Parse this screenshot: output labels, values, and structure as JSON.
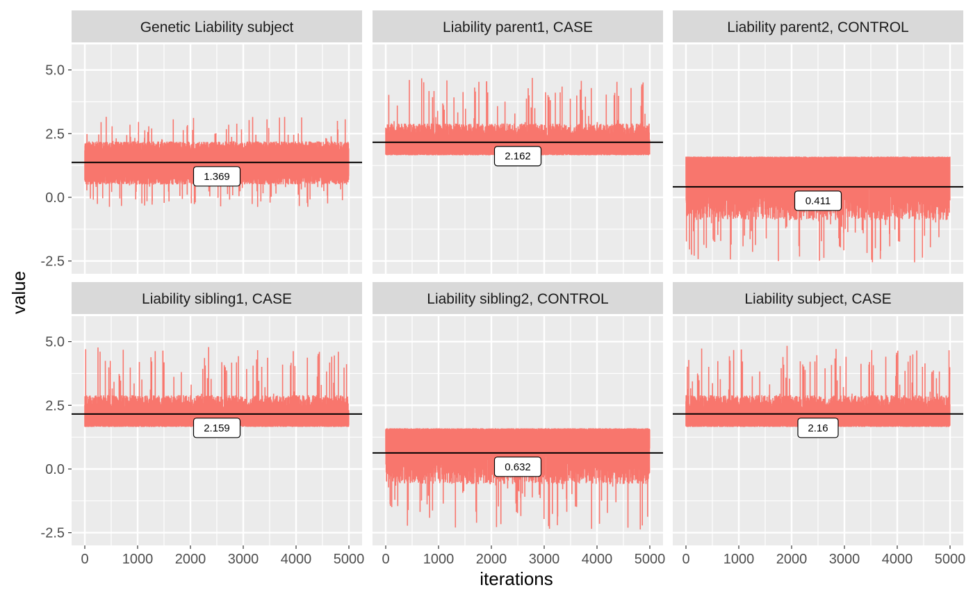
{
  "chart_data": {
    "type": "line",
    "layout": "facet-grid",
    "xlabel": "iterations",
    "ylabel": "value",
    "xlim": [
      -250,
      5250
    ],
    "ylim": [
      -3.0,
      6.0
    ],
    "xticks": [
      0,
      1000,
      2000,
      3000,
      4000,
      5000
    ],
    "yticks": [
      -2.5,
      0.0,
      2.5,
      5.0
    ],
    "ytick_labels": [
      "-2.5",
      "0.0",
      "2.5",
      "5.0"
    ],
    "grid": true,
    "n_iterations": 5000,
    "colors": {
      "series": "#F8766D",
      "mean_line": "#000000",
      "panel_bg": "#EBEBEB",
      "strip_bg": "#D9D9D9",
      "grid": "#FFFFFF"
    },
    "panels": [
      {
        "title": "Genetic Liability subject",
        "mean": 1.369,
        "mean_label": "1.369",
        "range_lo": 0.5,
        "range_hi": 2.2,
        "spike_min": -0.4,
        "spike_max": 3.2,
        "trunc_lower": false,
        "trunc_upper": false
      },
      {
        "title": "Liability parent1, CASE",
        "mean": 2.162,
        "mean_label": "2.162",
        "range_lo": 1.65,
        "range_hi": 2.9,
        "spike_min": 1.65,
        "spike_max": 4.7,
        "trunc_lower": true,
        "trunc_upper": false
      },
      {
        "title": "Liability parent2, CONTROL",
        "mean": 0.411,
        "mean_label": "0.411",
        "range_lo": -0.9,
        "range_hi": 1.6,
        "spike_min": -2.6,
        "spike_max": 1.65,
        "trunc_lower": false,
        "trunc_upper": true
      },
      {
        "title": "Liability sibling1, CASE",
        "mean": 2.159,
        "mean_label": "2.159",
        "range_lo": 1.65,
        "range_hi": 2.9,
        "spike_min": 1.65,
        "spike_max": 4.8,
        "trunc_lower": true,
        "trunc_upper": false
      },
      {
        "title": "Liability sibling2, CONTROL",
        "mean": 0.632,
        "mean_label": "0.632",
        "range_lo": -0.6,
        "range_hi": 1.6,
        "spike_min": -2.4,
        "spike_max": 1.65,
        "trunc_lower": false,
        "trunc_upper": true
      },
      {
        "title": "Liability subject, CASE",
        "mean": 2.16,
        "mean_label": "2.16",
        "range_lo": 1.65,
        "range_hi": 2.9,
        "spike_min": 1.65,
        "spike_max": 4.85,
        "trunc_lower": true,
        "trunc_upper": false
      }
    ]
  }
}
